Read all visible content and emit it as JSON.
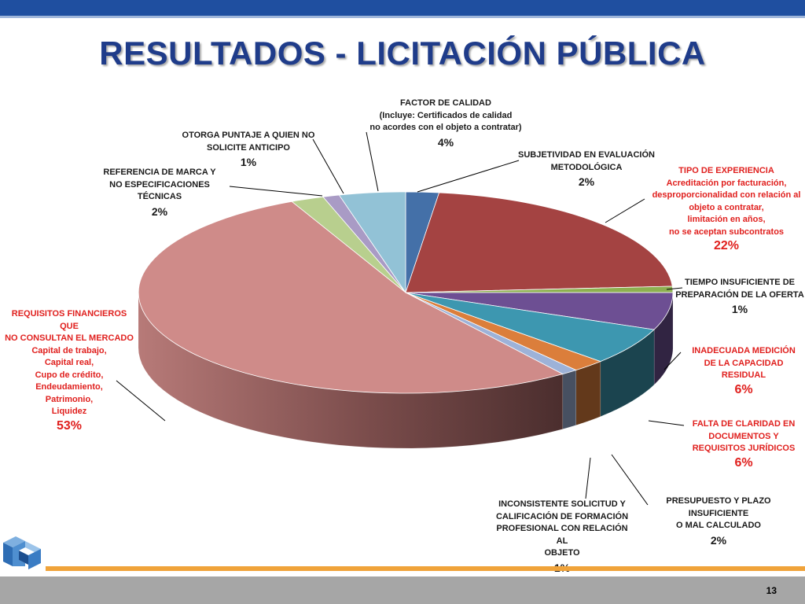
{
  "title": "RESULTADOS - LICITACIÓN PÚBLICA",
  "page_number": "13",
  "chart_data": {
    "type": "pie",
    "title": "RESULTADOS - LICITACIÓN PÚBLICA",
    "slices": [
      {
        "key": "subjetividad",
        "lines": [
          "SUBJETIVIDAD EN EVALUACIÓN",
          "METODOLÓGICA"
        ],
        "pct_label": "2%",
        "value": 2,
        "color": "#4470a8",
        "label_color": "#1a1a1a"
      },
      {
        "key": "tipo_experiencia",
        "lines": [
          "TIPO DE EXPERIENCIA",
          "Acreditación por facturación,",
          "desproporcionalidad con relación al",
          "objeto a contratar,",
          "limitación en años,",
          "no se aceptan subcontratos"
        ],
        "pct_label": "22%",
        "value": 22,
        "color": "#a44342",
        "label_color": "#e0201e"
      },
      {
        "key": "tiempo_insuficiente",
        "lines": [
          "TIEMPO INSUFICIENTE DE",
          "PREPARACIÓN DE LA OFERTA"
        ],
        "pct_label": "1%",
        "value": 1,
        "color": "#8db050",
        "label_color": "#1a1a1a"
      },
      {
        "key": "capacidad_residual",
        "lines": [
          "INADECUADA MEDICIÓN",
          "DE LA  CAPACIDAD",
          "RESIDUAL"
        ],
        "pct_label": "6%",
        "value": 6,
        "color": "#6d4f93",
        "label_color": "#e0201e"
      },
      {
        "key": "falta_claridad",
        "lines": [
          "FALTA DE CLARIDAD EN",
          "DOCUMENTOS Y",
          "REQUISITOS JURÍDICOS"
        ],
        "pct_label": "6%",
        "value": 6,
        "color": "#3d97b0",
        "label_color": "#e0201e"
      },
      {
        "key": "presupuesto",
        "lines": [
          "PRESUPUESTO Y PLAZO",
          "INSUFICIENTE",
          "O MAL CALCULADO"
        ],
        "pct_label": "2%",
        "value": 2,
        "color": "#db7e3b",
        "label_color": "#1a1a1a"
      },
      {
        "key": "inconsistente",
        "lines": [
          "INCONSISTENTE SOLICITUD Y",
          "CALIFICACIÓN DE FORMACIÓN",
          "PROFESIONAL CON RELACIÓN AL",
          "OBJETO"
        ],
        "pct_label": "1%",
        "value": 1,
        "color": "#9db2d8",
        "label_color": "#1a1a1a"
      },
      {
        "key": "requisitos_financieros",
        "lines": [
          "REQUISITOS FINANCIEROS QUE",
          "NO CONSULTAN EL MERCADO",
          "Capital de trabajo,",
          "Capital real,",
          "Cupo de crédito,",
          "Endeudamiento,",
          "Patrimonio,",
          "Liquidez"
        ],
        "pct_label": "53%",
        "value": 53,
        "color": "#cf8b89",
        "label_color": "#e0201e"
      },
      {
        "key": "referencia_marca",
        "lines": [
          "REFERENCIA DE MARCA Y",
          "NO ESPECIFICACIONES TÉCNICAS"
        ],
        "pct_label": "2%",
        "value": 2,
        "color": "#b8cf8e",
        "label_color": "#1a1a1a"
      },
      {
        "key": "puntaje_anticipo",
        "lines": [
          "OTORGA PUNTAJE A QUIEN NO",
          "SOLICITE ANTICIPO"
        ],
        "pct_label": "1%",
        "value": 1,
        "color": "#a99bc5",
        "label_color": "#1a1a1a"
      },
      {
        "key": "factor_calidad",
        "lines": [
          "FACTOR DE CALIDAD",
          "(Incluye: Certificados de calidad",
          "no acordes con el objeto a contratar)"
        ],
        "pct_label": "4%",
        "value": 4,
        "color": "#92c2d6",
        "label_color": "#1a1a1a"
      }
    ]
  }
}
